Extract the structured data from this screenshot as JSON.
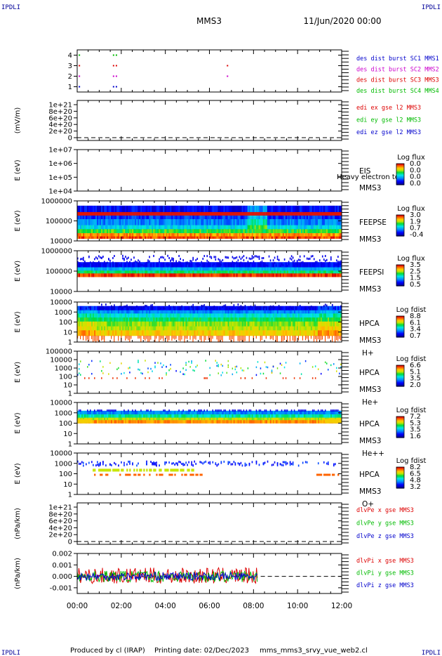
{
  "corner_labels": [
    "IPDLI",
    "IPDLI",
    "IPDLI",
    "IPDLI"
  ],
  "header": {
    "spacecraft": "MMS3",
    "datetime": "11/Jun/2020 00:00"
  },
  "footer": {
    "produced_by": "Produced by cl (IRAP)",
    "printing_date": "Printing date: 02/Dec/2023",
    "script": "mms_mms3_srvy_vue_web2.cl"
  },
  "time_axis": {
    "ticks": [
      "00:00",
      "02:00",
      "04:00",
      "06:00",
      "08:00",
      "10:00",
      "12:00"
    ]
  },
  "colors": {
    "red": "#dd0000",
    "magenta": "#cc00cc",
    "green": "#00bb00",
    "blue": "#0000cc",
    "corner": "#000099"
  },
  "chart_data": [
    {
      "type": "scatter",
      "title": "burst availability",
      "ylim": [
        0.5,
        4.5
      ],
      "y_ticks": [
        "1",
        "2",
        "3",
        "4"
      ],
      "series": [
        {
          "name": "des dist burst SC1 MMS1",
          "color": "#0000cc",
          "y": 1,
          "x_hours": [
            0.1,
            1.65,
            1.78
          ]
        },
        {
          "name": "des dist burst SC2 MMS2",
          "color": "#cc00cc",
          "y": 2,
          "x_hours": [
            0.1,
            1.65,
            1.78,
            6.82
          ]
        },
        {
          "name": "des dist burst SC3 MMS3",
          "color": "#dd0000",
          "y": 3,
          "x_hours": [
            0.1,
            1.65,
            1.78,
            6.82
          ]
        },
        {
          "name": "des dist burst SC4 MMS4",
          "color": "#00bb00",
          "y": 4,
          "x_hours": [
            0.1,
            1.65,
            1.78
          ]
        }
      ]
    },
    {
      "type": "line",
      "ylabel": "(mV/m)",
      "y_ticks": [
        "0",
        "2e+20",
        "4e+20",
        "6e+20",
        "8e+20",
        "1e+21"
      ],
      "series": [
        {
          "name": "edi ex gse l2 MMS3",
          "color": "#dd0000"
        },
        {
          "name": "edi ey gse l2 MMS3",
          "color": "#00bb00"
        },
        {
          "name": "edi ez gse l2 MMS3",
          "color": "#0000cc"
        }
      ]
    },
    {
      "type": "heatmap",
      "ylabel": "E (eV)",
      "y_ticks": [
        "1e+04",
        "1e+05",
        "1e+06",
        "1e+07"
      ],
      "labels": [
        "EIS",
        "MMS3"
      ],
      "overlay_text": "Heavy electron tof",
      "colorbar": {
        "title": "Log flux",
        "ticks": [
          "0.0",
          "0.0",
          "0.0",
          "0.0"
        ]
      }
    },
    {
      "type": "heatmap",
      "ylabel": "E (eV)",
      "y_ticks": [
        "10000",
        "100000",
        "1000000"
      ],
      "labels": [
        "FEEPSE",
        "MMS3"
      ],
      "colorbar": {
        "title": "Log flux",
        "ticks": [
          "3.0",
          "1.9",
          "0.7",
          "-0.4"
        ]
      }
    },
    {
      "type": "heatmap",
      "ylabel": "E (eV)",
      "y_ticks": [
        "10000",
        "100000",
        "1000000"
      ],
      "labels": [
        "FEEPSI",
        "MMS3"
      ],
      "colorbar": {
        "title": "Log flux",
        "ticks": [
          "3.5",
          "2.5",
          "1.5",
          "0.5"
        ]
      }
    },
    {
      "type": "heatmap",
      "ylabel": "E (eV)",
      "y_ticks": [
        "1",
        "10",
        "100",
        "1000",
        "10000"
      ],
      "labels": [
        "HPCA",
        "MMS3",
        "H+"
      ],
      "colorbar": {
        "title": "Log fdist",
        "ticks": [
          "8.8",
          "6.1",
          "3.4",
          "0.7"
        ]
      }
    },
    {
      "type": "heatmap",
      "ylabel": "E (eV)",
      "y_ticks": [
        "1",
        "10",
        "100",
        "1000",
        "10000",
        "100000"
      ],
      "labels": [
        "HPCA",
        "MMS3",
        "He+"
      ],
      "colorbar": {
        "title": "Log fdist",
        "ticks": [
          "6.6",
          "5.1",
          "3.5",
          "2.0"
        ]
      }
    },
    {
      "type": "heatmap",
      "ylabel": "E (eV)",
      "y_ticks": [
        "1",
        "10",
        "100",
        "1000",
        "10000"
      ],
      "labels": [
        "HPCA",
        "MMS3",
        "He++"
      ],
      "colorbar": {
        "title": "Log fdist",
        "ticks": [
          "7.2",
          "5.3",
          "3.5",
          "1.6"
        ]
      }
    },
    {
      "type": "heatmap",
      "ylabel": "E (eV)",
      "y_ticks": [
        "1",
        "10",
        "100",
        "1000",
        "10000"
      ],
      "labels": [
        "HPCA",
        "MMS3",
        "O+"
      ],
      "colorbar": {
        "title": "Log fdist",
        "ticks": [
          "8.2",
          "6.5",
          "4.8",
          "3.2"
        ]
      }
    },
    {
      "type": "line",
      "ylabel": "(nPa/km)",
      "y_ticks": [
        "0",
        "2e+20",
        "4e+20",
        "6e+20",
        "8e+20",
        "1e+21"
      ],
      "series": [
        {
          "name": "dlvPe x gse MMS3",
          "color": "#dd0000"
        },
        {
          "name": "dlvPe y gse MMS3",
          "color": "#00bb00"
        },
        {
          "name": "dlvPe z gse MMS3",
          "color": "#0000cc"
        }
      ]
    },
    {
      "type": "line",
      "ylabel": "(nPa/km)",
      "y_ticks": [
        "-0.001",
        "0.000",
        "0.001",
        "0.002"
      ],
      "ylim": [
        -0.0015,
        0.002
      ],
      "x_end_hours": 8.2,
      "series": [
        {
          "name": "dlvPi x gse MMS3",
          "color": "#dd0000",
          "amplitude": 0.0007
        },
        {
          "name": "dlvPi y gse MMS3",
          "color": "#00bb00",
          "amplitude": 0.0005
        },
        {
          "name": "dlvPi z gse MMS3",
          "color": "#0000cc",
          "amplitude": 0.00035
        }
      ]
    }
  ]
}
